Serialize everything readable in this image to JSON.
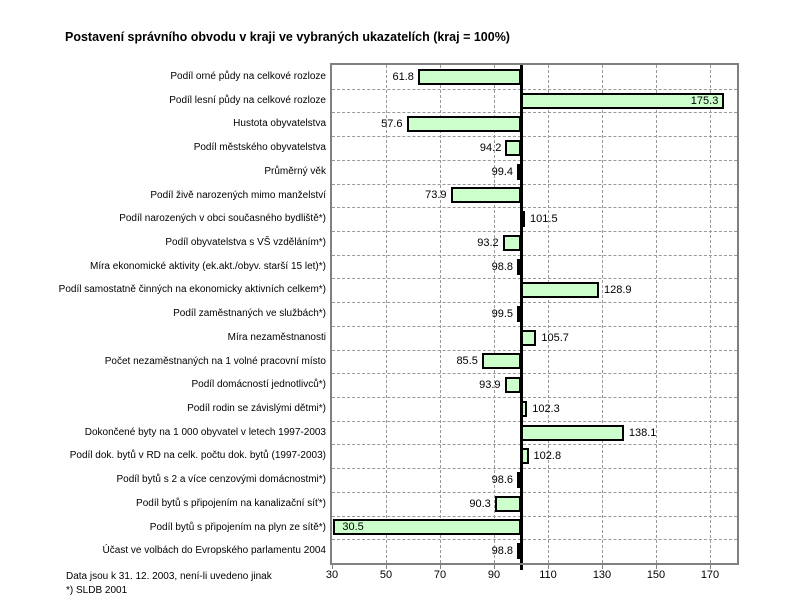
{
  "title": "Postavení správního obvodu v kraji ve vybraných ukazatelích (kraj = 100%)",
  "footnote": {
    "line1": "Data jsou k 31. 12. 2003, není-li uvedeno jinak",
    "line2": "*) SLDB 2001"
  },
  "colors": {
    "bar_fill": "#ccffcc",
    "bar_border": "#000000",
    "frame": "#808080",
    "grid": "#999999",
    "baseline": "#000000",
    "background": "#ffffff",
    "text": "#000000"
  },
  "chart_data": {
    "type": "bar",
    "orientation": "horizontal",
    "title": "Postavení správního obvodu v kraji ve vybraných ukazatelích (kraj = 100%)",
    "xlabel": "",
    "ylabel": "",
    "baseline_value": 100,
    "xlim": [
      30,
      180
    ],
    "x_ticks": [
      30,
      50,
      70,
      90,
      110,
      130,
      150,
      170
    ],
    "grid": "dashed",
    "legend": "none",
    "categories": [
      "Podíl orné půdy na celkové rozloze",
      "Podíl lesní půdy na celkové rozloze",
      "Hustota obyvatelstva",
      "Podíl městského obyvatelstva",
      "Průměrný věk",
      "Podíl živě narozených mimo manželství",
      "Podíl narozených v obci současného bydliště*)",
      "Podíl obyvatelstva s VŠ vzděláním*)",
      "Míra ekonomické aktivity (ek.akt./obyv. starší 15 let)*)",
      "Podíl samostatně činných na ekonomicky aktivních celkem*)",
      "Podíl zaměstnaných ve službách*)",
      "Míra nezaměstnanosti",
      "Počet nezaměstnaných na 1 volné pracovní místo",
      "Podíl domácností jednotlivců*)",
      "Podíl rodin se závislými dětmi*)",
      "Dokončené byty na 1 000 obyvatel v letech 1997-2003",
      "Podíl dok. bytů v RD na celk. počtu dok. bytů (1997-2003)",
      "Podíl bytů s 2 a více cenzovými domácnostmi*)",
      "Podíl bytů s připojením na kanalizační síť*)",
      "Podíl bytů s připojením na plyn ze sítě*)",
      "Účast ve volbách do Evropského parlamentu 2004"
    ],
    "values": [
      61.8,
      175.3,
      57.6,
      94.2,
      99.4,
      73.9,
      101.5,
      93.2,
      98.8,
      128.9,
      99.5,
      105.7,
      85.5,
      93.9,
      102.3,
      138.1,
      102.8,
      98.6,
      90.3,
      30.5,
      98.8
    ]
  }
}
